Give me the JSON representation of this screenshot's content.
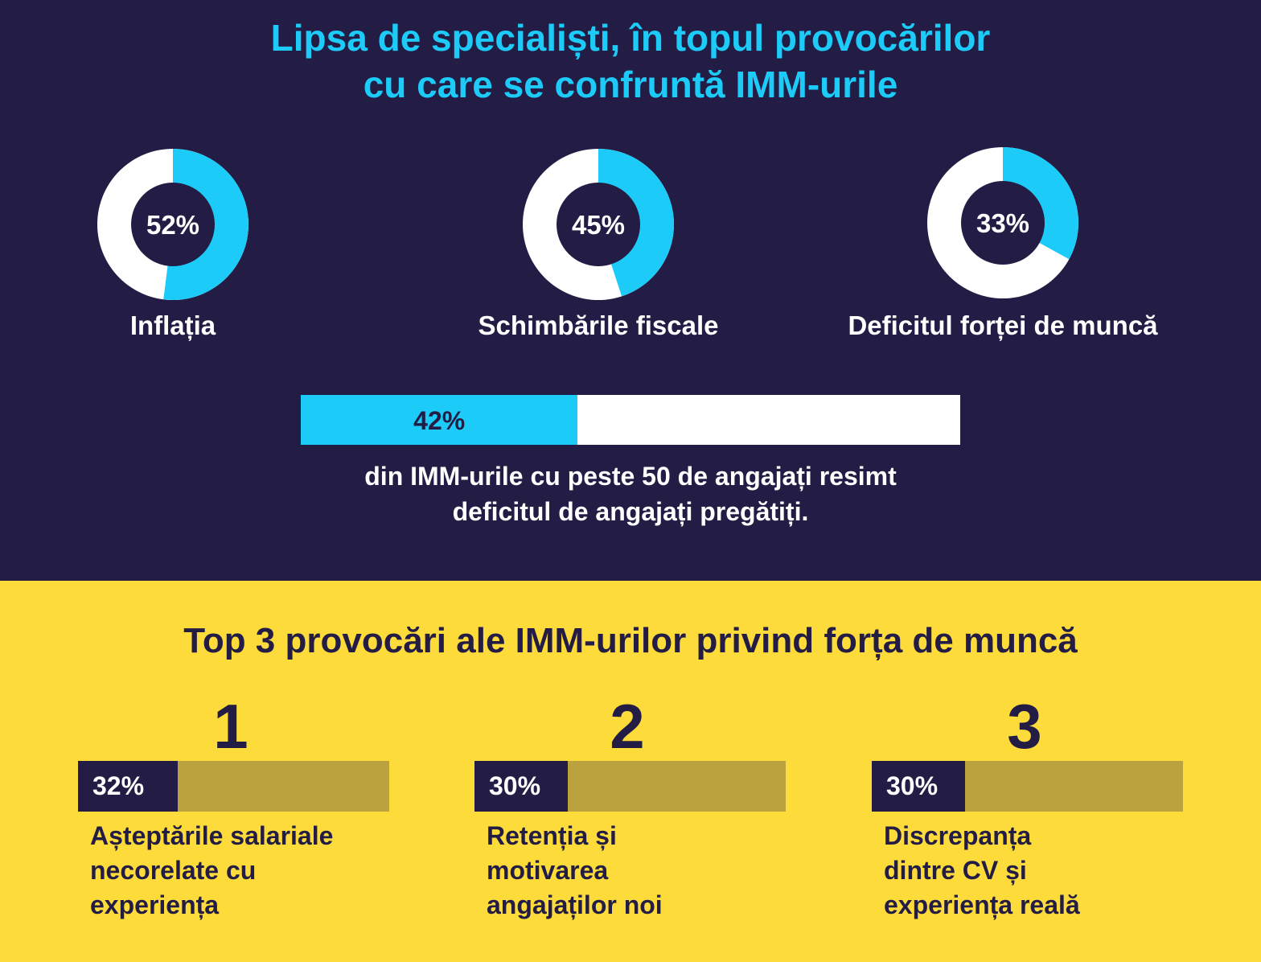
{
  "title_lines": [
    "Lipsa de specialiști, în topul provocărilor",
    "cu care se confruntă IMM-urile"
  ],
  "colors": {
    "navy": "#231d45",
    "cyan": "#1ccbf7",
    "white": "#ffffff",
    "yellow": "#fcdb3a",
    "olive": "#bca23f"
  },
  "chart_data": [
    {
      "type": "pie",
      "variant": "donut",
      "slices": [
        {
          "label": "Inflația",
          "value": 52,
          "display": "52%"
        },
        {
          "label": "Schimbările fiscale",
          "value": 45,
          "display": "45%"
        },
        {
          "label": "Deficitul forței de muncă",
          "value": 33,
          "display": "33%"
        }
      ]
    },
    {
      "type": "bar",
      "orientation": "horizontal",
      "value": 42,
      "display": "42%",
      "max": 100,
      "caption_lines": [
        "din IMM-urile cu peste 50 de angajați resimt",
        "deficitul de angajați pregătiți."
      ]
    },
    {
      "type": "bar",
      "orientation": "horizontal",
      "title": "Top 3 provocări ale IMM-urilor privind forța de muncă",
      "max": 100,
      "items": [
        {
          "rank": "1",
          "value": 32,
          "display": "32%",
          "label_lines": [
            "Așteptările salariale",
            "necorelate cu",
            "experiența"
          ]
        },
        {
          "rank": "2",
          "value": 30,
          "display": "30%",
          "label_lines": [
            "Retenția și",
            "motivarea",
            "angajaților noi"
          ]
        },
        {
          "rank": "3",
          "value": 30,
          "display": "30%",
          "label_lines": [
            "Discrepanța",
            "dintre CV și",
            "experiența reală"
          ]
        }
      ]
    }
  ]
}
